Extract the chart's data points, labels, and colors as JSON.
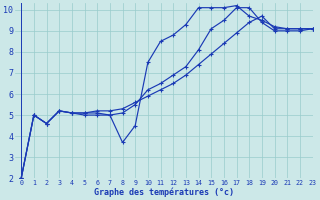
{
  "xlabel": "Graphe des températures (°c)",
  "xlim": [
    -0.5,
    23
  ],
  "ylim": [
    2,
    10.3
  ],
  "xticks": [
    0,
    1,
    2,
    3,
    4,
    5,
    6,
    7,
    8,
    9,
    10,
    11,
    12,
    13,
    14,
    15,
    16,
    17,
    18,
    19,
    20,
    21,
    22,
    23
  ],
  "yticks": [
    2,
    3,
    4,
    5,
    6,
    7,
    8,
    9,
    10
  ],
  "bg_color": "#cce8e8",
  "grid_color": "#99cccc",
  "line_color": "#1a3ab5",
  "line1_x": [
    0,
    1,
    2,
    3,
    4,
    5,
    6,
    7,
    8,
    9,
    10,
    11,
    12,
    13,
    14,
    15,
    16,
    17,
    18,
    19,
    20,
    21,
    22,
    23
  ],
  "line1_y": [
    2.0,
    5.0,
    4.6,
    5.2,
    5.1,
    5.0,
    5.0,
    5.0,
    3.7,
    4.5,
    7.5,
    8.5,
    8.8,
    9.3,
    10.1,
    10.1,
    10.1,
    10.2,
    9.7,
    9.5,
    9.2,
    9.1,
    9.1,
    9.1
  ],
  "line2_x": [
    0,
    1,
    2,
    3,
    4,
    5,
    6,
    7,
    8,
    9,
    10,
    11,
    12,
    13,
    14,
    15,
    16,
    17,
    18,
    19,
    20,
    21,
    22,
    23
  ],
  "line2_y": [
    2.0,
    5.0,
    4.6,
    5.2,
    5.1,
    5.1,
    5.1,
    5.0,
    5.1,
    5.5,
    6.2,
    6.5,
    6.9,
    7.3,
    8.1,
    9.1,
    9.5,
    10.1,
    10.1,
    9.4,
    9.0,
    9.0,
    9.0,
    9.1
  ],
  "line3_x": [
    0,
    1,
    2,
    3,
    4,
    5,
    6,
    7,
    8,
    9,
    10,
    11,
    12,
    13,
    14,
    15,
    16,
    17,
    18,
    19,
    20,
    21,
    22,
    23
  ],
  "line3_y": [
    2.0,
    5.0,
    4.6,
    5.2,
    5.1,
    5.1,
    5.2,
    5.2,
    5.3,
    5.6,
    5.9,
    6.2,
    6.5,
    6.9,
    7.4,
    7.9,
    8.4,
    8.9,
    9.4,
    9.7,
    9.1,
    9.1,
    9.1,
    9.1
  ],
  "marker_size": 2.5,
  "line_width": 0.85,
  "xlabel_fontsize": 6.0,
  "tick_fontsize_x": 4.8,
  "tick_fontsize_y": 6.0
}
